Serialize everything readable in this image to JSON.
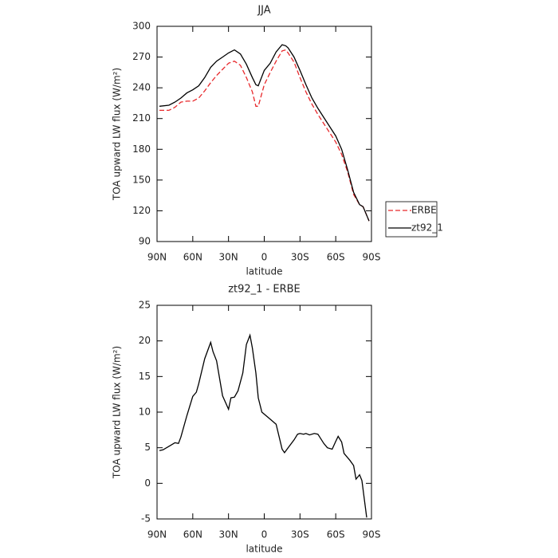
{
  "chart_data": [
    {
      "type": "line",
      "title": "JJA",
      "x_label": "latitude",
      "y_label": "TOA upward LW flux (W/m²)",
      "x": [
        88,
        80,
        75,
        70,
        65,
        60,
        55,
        50,
        45,
        40,
        35,
        30,
        25,
        20,
        15,
        10,
        7,
        5,
        0,
        -5,
        -10,
        -15,
        -18,
        -20,
        -25,
        -30,
        -35,
        -40,
        -45,
        -50,
        -55,
        -60,
        -65,
        -70,
        -75,
        -80,
        -83,
        -88
      ],
      "series": [
        {
          "name": "ERBE",
          "color": "#e8282b",
          "style": "dashed",
          "values": [
            218,
            218,
            221,
            226,
            227,
            227,
            230,
            237,
            245,
            252,
            258,
            264,
            266,
            262,
            250,
            236,
            222,
            222,
            243,
            255,
            266,
            276,
            277,
            274,
            265,
            250,
            236,
            224,
            214,
            205,
            196,
            187,
            175,
            158,
            136,
            126,
            124,
            110
          ]
        },
        {
          "name": "zt92_1",
          "color": "#000000",
          "style": "solid",
          "values": [
            222,
            223,
            226,
            230,
            235,
            238,
            242,
            250,
            260,
            266,
            270,
            274,
            277,
            273,
            263,
            250,
            243,
            242,
            257,
            264,
            275,
            282,
            281,
            279,
            270,
            257,
            243,
            230,
            220,
            211,
            202,
            193,
            180,
            160,
            138,
            126,
            124,
            110
          ]
        }
      ],
      "xlim": [
        90,
        -90
      ],
      "xticks": [
        {
          "value": 90,
          "label": "90N"
        },
        {
          "value": 60,
          "label": "60N"
        },
        {
          "value": 30,
          "label": "30N"
        },
        0,
        {
          "value": -30,
          "label": "30S"
        },
        {
          "value": -60,
          "label": "60S"
        },
        {
          "value": -90,
          "label": "90S"
        }
      ],
      "ylim": [
        90,
        300
      ],
      "yticks": [
        90,
        120,
        150,
        180,
        210,
        240,
        270,
        300
      ],
      "legend": "right"
    },
    {
      "type": "line",
      "title": "zt92_1 - ERBE",
      "x_label": "latitude",
      "y_label": "TOA upward LW flux (W/m²)",
      "x": [
        88,
        85,
        80,
        75,
        72,
        70,
        65,
        60,
        57,
        55,
        50,
        45,
        43,
        40,
        35,
        30,
        28,
        25,
        22,
        18,
        15,
        12,
        10,
        7,
        5,
        2,
        -5,
        -10,
        -15,
        -17,
        -20,
        -25,
        -28,
        -30,
        -33,
        -35,
        -38,
        -42,
        -45,
        -50,
        -53,
        -57,
        -60,
        -62,
        -65,
        -67,
        -72,
        -75,
        -77,
        -80,
        -82,
        -86
      ],
      "series": [
        {
          "name": "zt92_1 - ERBE",
          "color": "#000000",
          "style": "solid",
          "values": [
            4.6,
            4.7,
            5.2,
            5.7,
            5.6,
            6.5,
            9.5,
            12.2,
            12.8,
            14.0,
            17.5,
            19.8,
            18.5,
            17.2,
            12.3,
            10.4,
            12.0,
            12.1,
            13.0,
            15.5,
            19.5,
            20.8,
            19.0,
            15.5,
            12.0,
            10.0,
            9.0,
            8.3,
            4.8,
            4.3,
            5.0,
            6.1,
            6.9,
            7.0,
            6.9,
            7.0,
            6.8,
            7.0,
            6.9,
            5.6,
            5.0,
            4.8,
            5.9,
            6.6,
            5.8,
            4.2,
            3.2,
            2.5,
            0.6,
            1.2,
            0.4,
            -4.8
          ]
        }
      ],
      "xlim": [
        90,
        -90
      ],
      "xticks": [
        {
          "value": 90,
          "label": "90N"
        },
        {
          "value": 60,
          "label": "60N"
        },
        {
          "value": 30,
          "label": "30N"
        },
        0,
        {
          "value": -30,
          "label": "30S"
        },
        {
          "value": -60,
          "label": "60S"
        },
        {
          "value": -90,
          "label": "90S"
        }
      ],
      "ylim": [
        -5,
        25
      ],
      "yticks": [
        -5,
        0,
        5,
        10,
        15,
        20,
        25
      ]
    }
  ]
}
